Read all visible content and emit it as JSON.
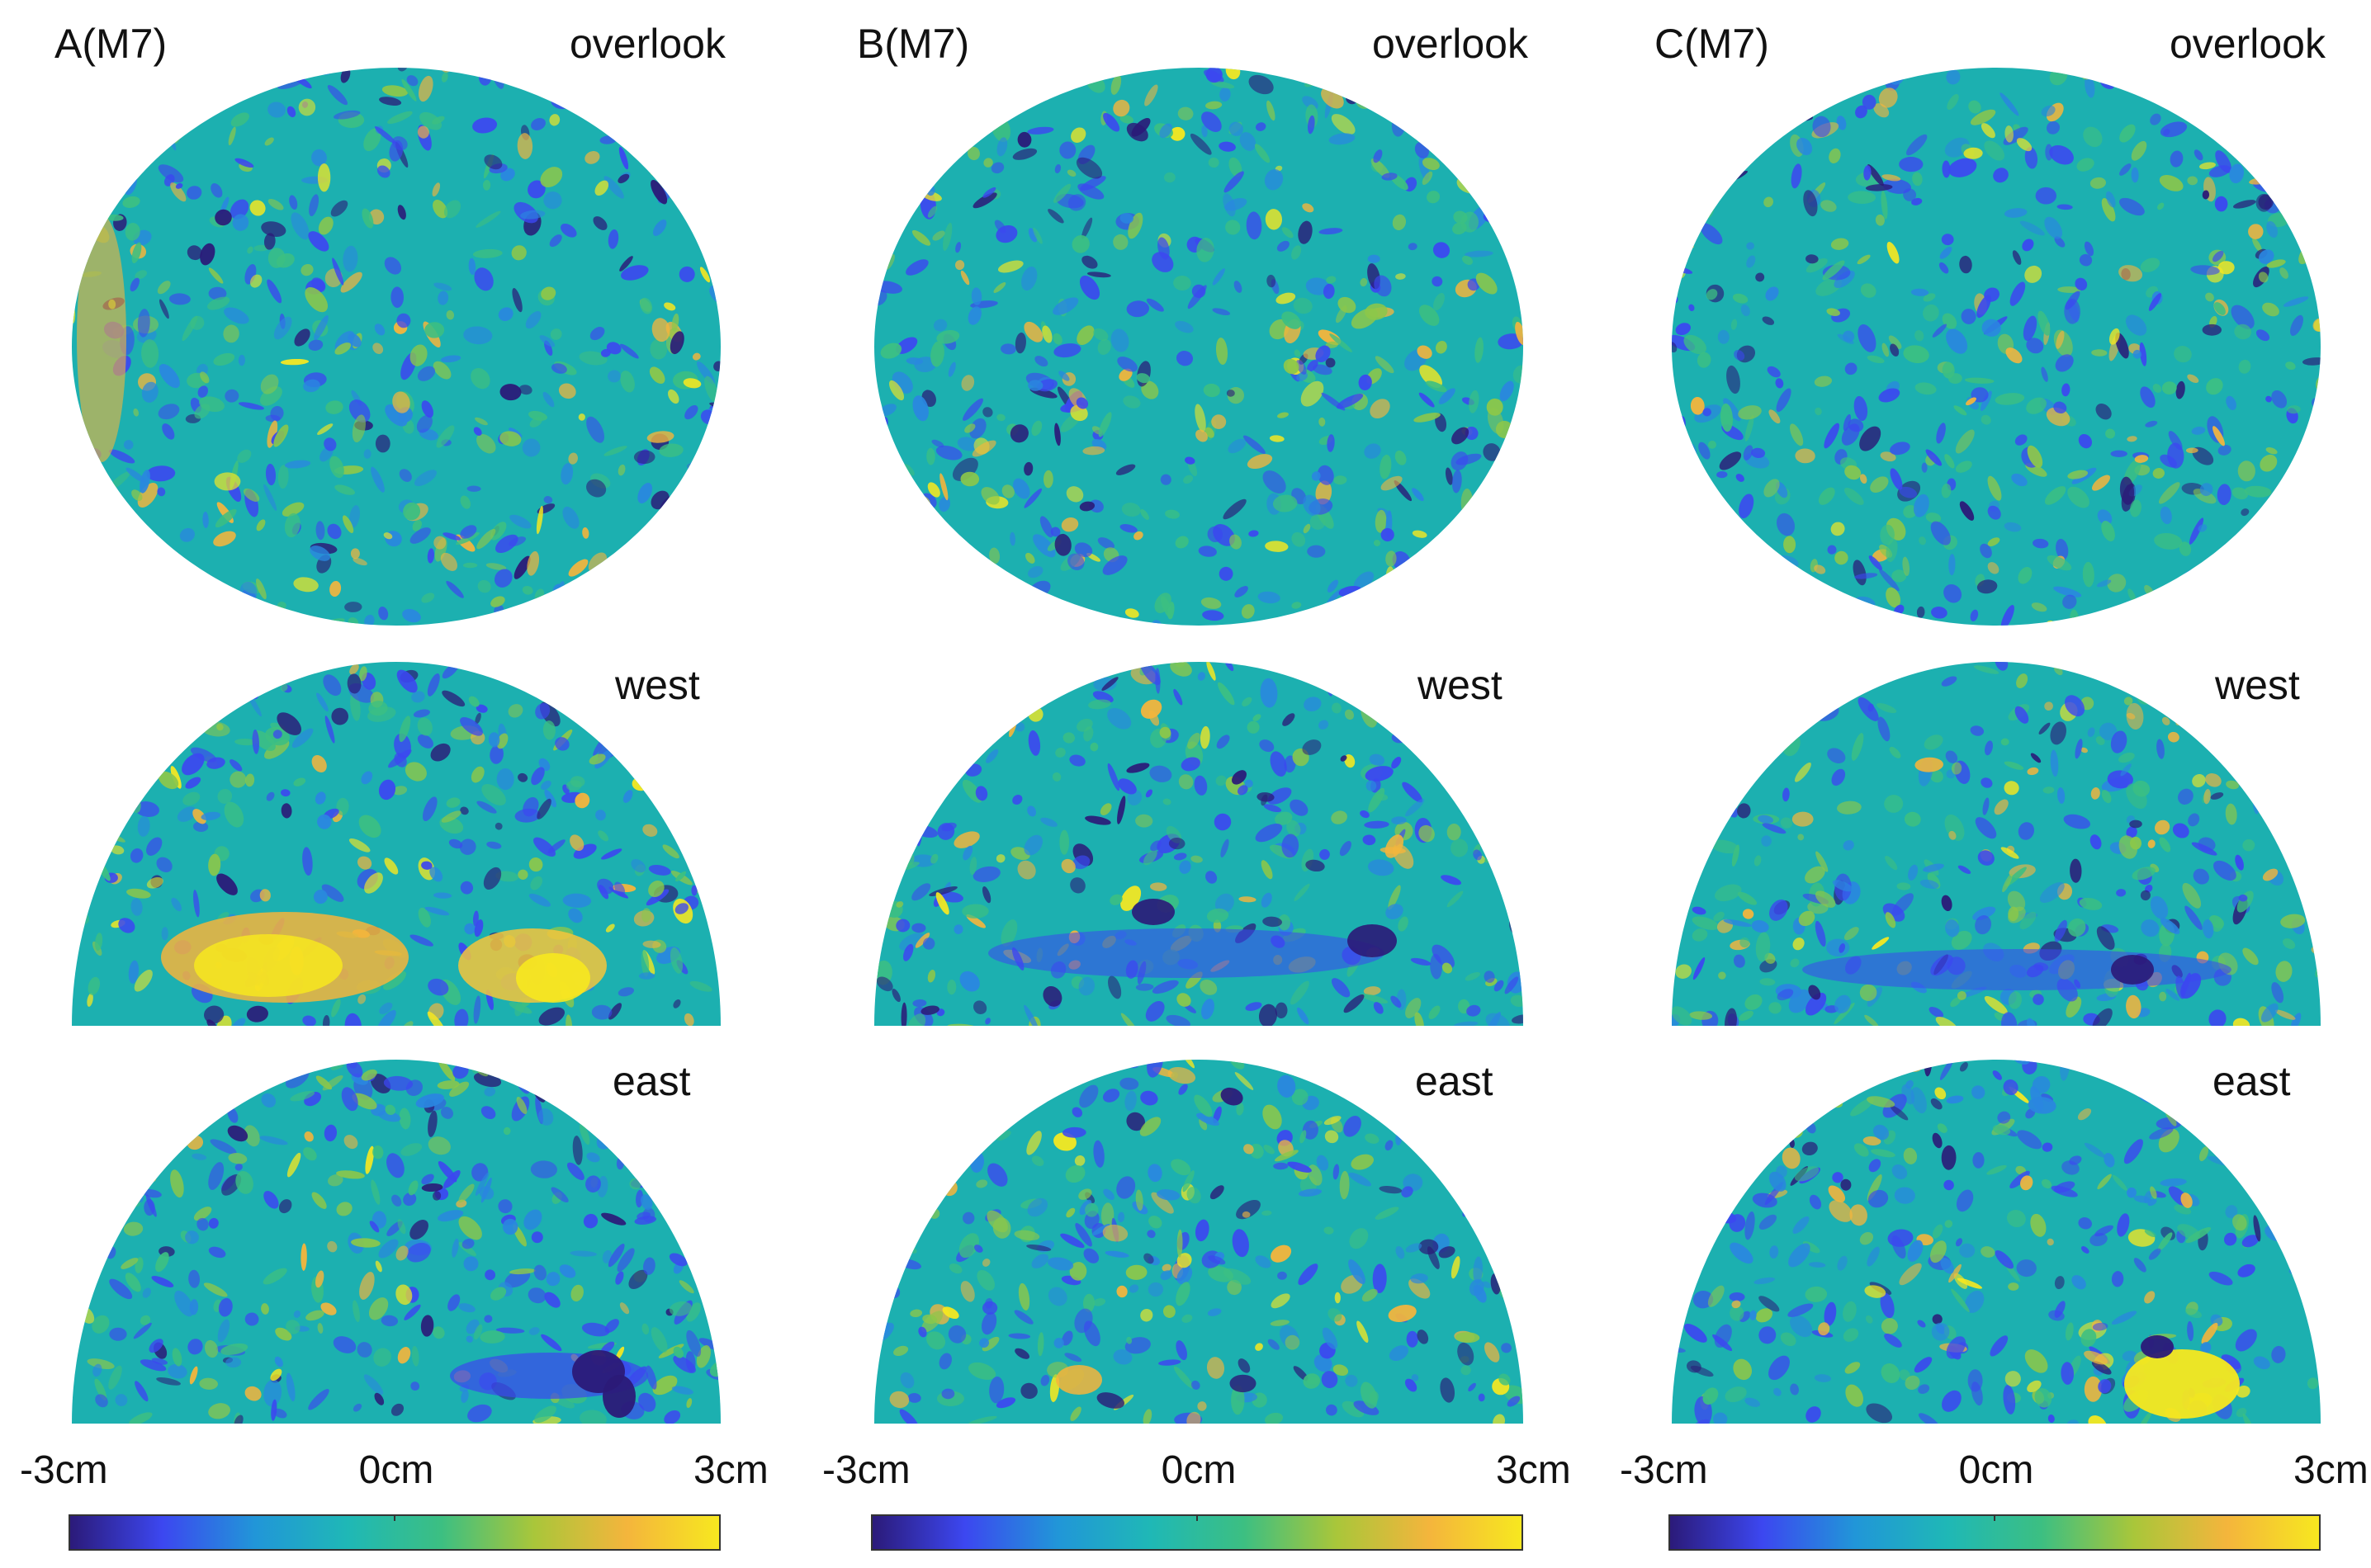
{
  "panels": [
    {
      "id": "A",
      "title": "A(M7)",
      "views": {
        "top": "overlook",
        "middle": "west",
        "bottom": "east"
      },
      "pattern": "a"
    },
    {
      "id": "B",
      "title": "B(M7)",
      "views": {
        "top": "overlook",
        "middle": "west",
        "bottom": "east"
      },
      "pattern": "b"
    },
    {
      "id": "C",
      "title": "C(M7)",
      "views": {
        "top": "overlook",
        "middle": "west",
        "bottom": "east"
      },
      "pattern": "c"
    }
  ],
  "colorbar": {
    "min_label": "-3cm",
    "mid_label": "0cm",
    "max_label": "3cm",
    "min": -3,
    "max": 3,
    "unit": "cm",
    "colors": [
      "#2b1a78",
      "#3c47f0",
      "#2196d8",
      "#1fb8b6",
      "#3cbf82",
      "#a9c63a",
      "#f4b53c",
      "#f7e81f"
    ],
    "background": "#1cb0b0"
  }
}
